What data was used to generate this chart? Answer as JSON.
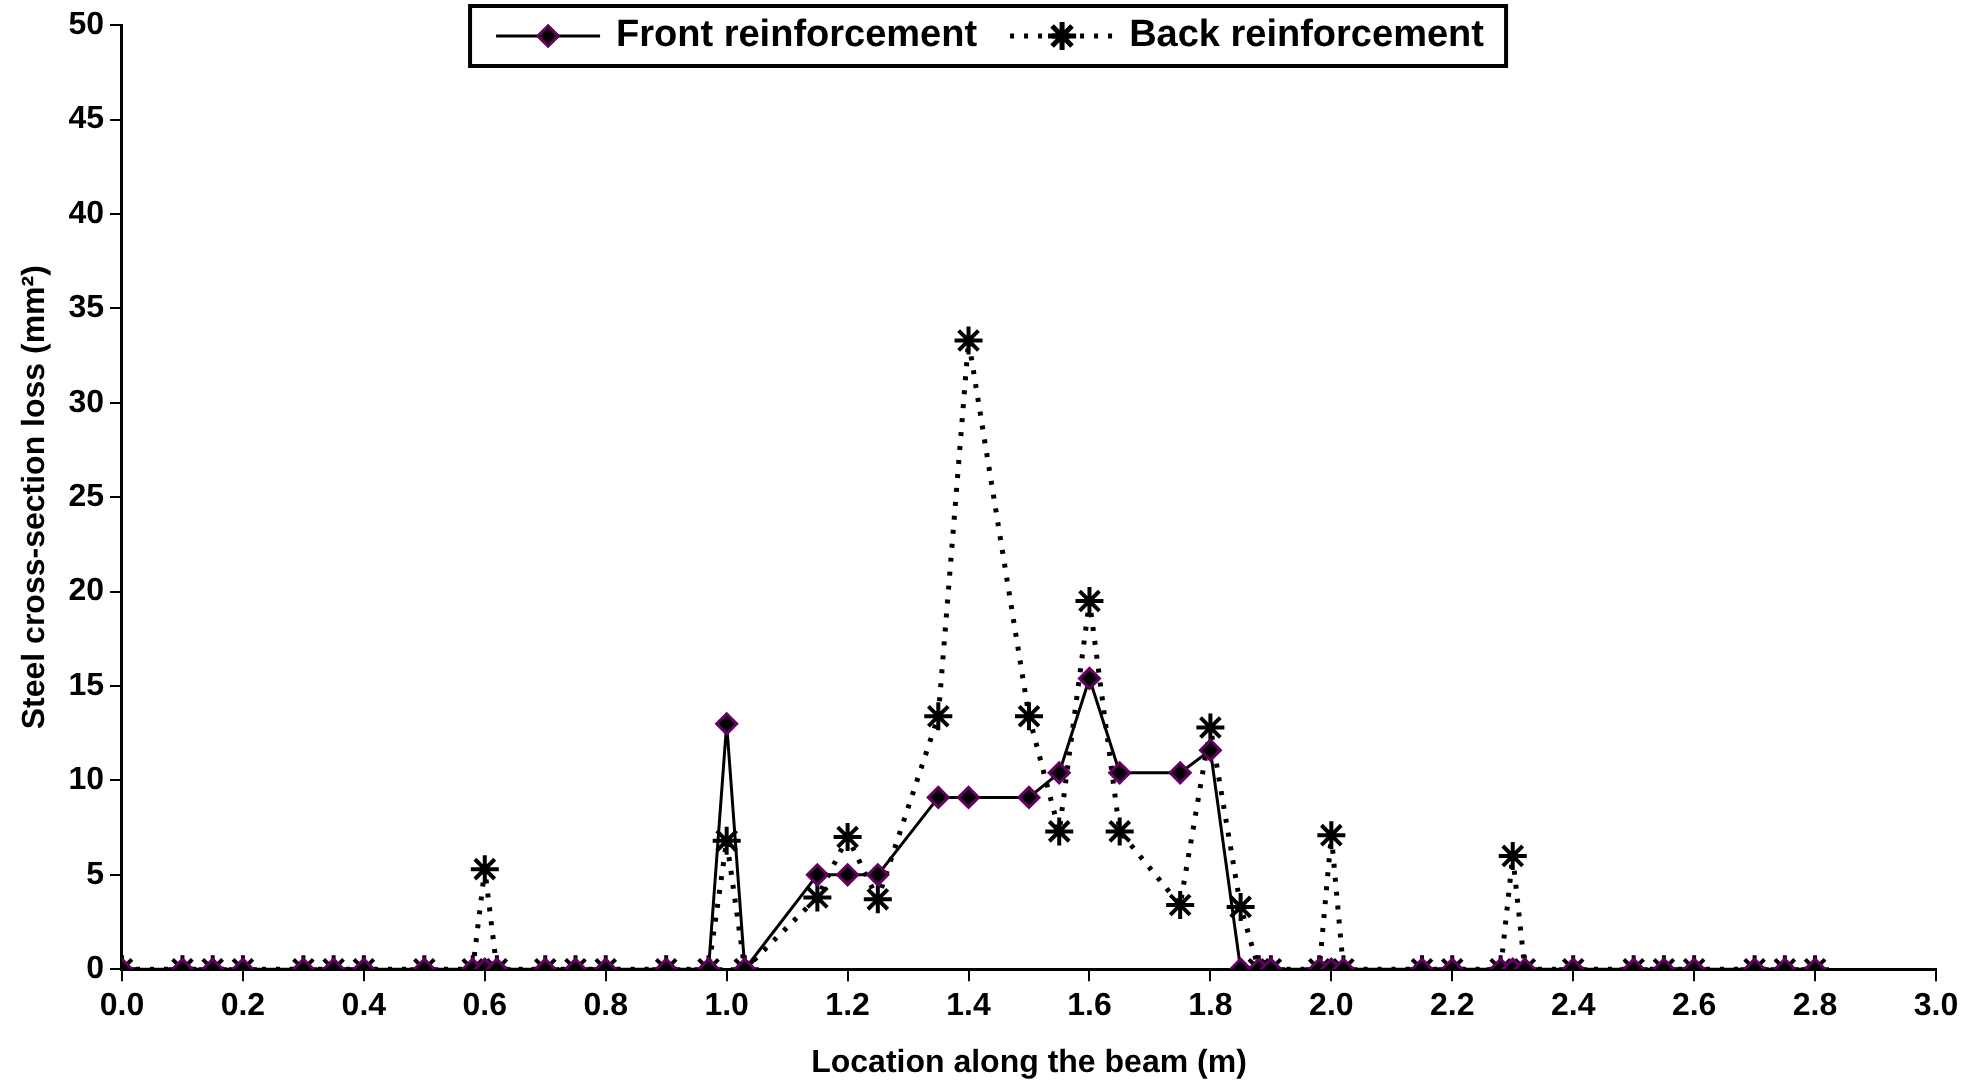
{
  "chart_data": {
    "type": "line",
    "xlabel": "Location along the beam (m)",
    "ylabel": "Steel cross-section loss (mm²)",
    "x": [
      0,
      0.1,
      0.15,
      0.2,
      0.3,
      0.35,
      0.4,
      0.5,
      0.58,
      0.6,
      0.62,
      0.7,
      0.75,
      0.8,
      0.9,
      0.97,
      1.0,
      1.03,
      1.15,
      1.2,
      1.25,
      1.35,
      1.4,
      1.5,
      1.55,
      1.6,
      1.65,
      1.75,
      1.8,
      1.85,
      1.88,
      1.9,
      1.98,
      2.0,
      2.02,
      2.15,
      2.2,
      2.28,
      2.3,
      2.32,
      2.4,
      2.5,
      2.55,
      2.6,
      2.7,
      2.75,
      2.8
    ],
    "series": [
      {
        "name": "Front reinforcement",
        "color": "#660066",
        "marker": "diamond",
        "line_style": "solid",
        "values": [
          0,
          0,
          0,
          0,
          0,
          0,
          0,
          0,
          0,
          0,
          0,
          0,
          0,
          0,
          0,
          0,
          13.0,
          0,
          5.0,
          5.0,
          5.0,
          9.1,
          9.1,
          9.1,
          10.4,
          15.4,
          10.4,
          10.4,
          11.6,
          0,
          0,
          0,
          0,
          0,
          0,
          0,
          0,
          0,
          0,
          0,
          0,
          0,
          0,
          0,
          0,
          0,
          0
        ]
      },
      {
        "name": "Back reinforcement",
        "color": "#000000",
        "marker": "cross",
        "line_style": "dotted",
        "values": [
          0,
          0,
          0,
          0,
          0,
          0,
          0,
          0,
          0,
          5.3,
          0,
          0,
          0,
          0,
          0,
          0,
          6.8,
          0,
          3.8,
          7.0,
          3.7,
          13.4,
          33.3,
          13.4,
          7.3,
          19.5,
          7.3,
          3.4,
          12.8,
          3.3,
          0,
          0,
          0,
          7.1,
          0,
          0,
          0,
          0,
          6.0,
          0,
          0,
          0,
          0,
          0,
          0,
          0,
          0
        ]
      }
    ],
    "xlim": [
      0,
      3
    ],
    "xticks": [
      {
        "value": 0,
        "label": "0.0"
      },
      {
        "value": 0.2,
        "label": "0.2"
      },
      {
        "value": 0.4,
        "label": "0.4"
      },
      {
        "value": 0.6,
        "label": "0.6"
      },
      {
        "value": 0.8,
        "label": "0.8"
      },
      {
        "value": 1,
        "label": "1.0"
      },
      {
        "value": 1.2,
        "label": "1.2"
      },
      {
        "value": 1.4,
        "label": "1.4"
      },
      {
        "value": 1.6,
        "label": "1.6"
      },
      {
        "value": 1.8,
        "label": "1.8"
      },
      {
        "value": 2,
        "label": "2.0"
      },
      {
        "value": 2.2,
        "label": "2.2"
      },
      {
        "value": 2.4,
        "label": "2.4"
      },
      {
        "value": 2.6,
        "label": "2.6"
      },
      {
        "value": 2.8,
        "label": "2.8"
      },
      {
        "value": 3,
        "label": "3.0"
      }
    ],
    "ylim": [
      0,
      50
    ],
    "yticks": [
      0,
      5,
      10,
      15,
      20,
      25,
      30,
      35,
      40,
      45,
      50
    ],
    "grid": false,
    "legend": "top"
  }
}
